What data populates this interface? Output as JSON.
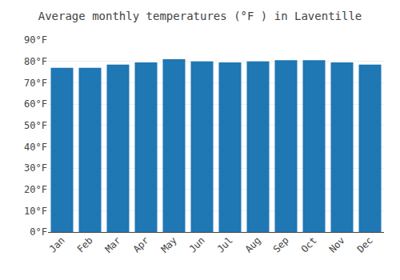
{
  "chart_data": {
    "type": "bar",
    "title": "Average monthly temperatures (°F ) in Laventille",
    "categories": [
      "Jan",
      "Feb",
      "Mar",
      "Apr",
      "May",
      "Jun",
      "Jul",
      "Aug",
      "Sep",
      "Oct",
      "Nov",
      "Dec"
    ],
    "values": [
      77,
      77,
      78.5,
      79.5,
      81,
      80,
      79.5,
      80,
      80.5,
      80.5,
      79.5,
      78.5
    ],
    "ylim": [
      0,
      90
    ],
    "yticks": [
      {
        "value": 0,
        "label": "0°F"
      },
      {
        "value": 10,
        "label": "10°F"
      },
      {
        "value": 20,
        "label": "20°F"
      },
      {
        "value": 30,
        "label": "30°F"
      },
      {
        "value": 40,
        "label": "40°F"
      },
      {
        "value": 50,
        "label": "50°F"
      },
      {
        "value": 60,
        "label": "60°F"
      },
      {
        "value": 70,
        "label": "70°F"
      },
      {
        "value": 80,
        "label": "80°F"
      },
      {
        "value": 90,
        "label": "90°F"
      }
    ],
    "grid": true
  }
}
